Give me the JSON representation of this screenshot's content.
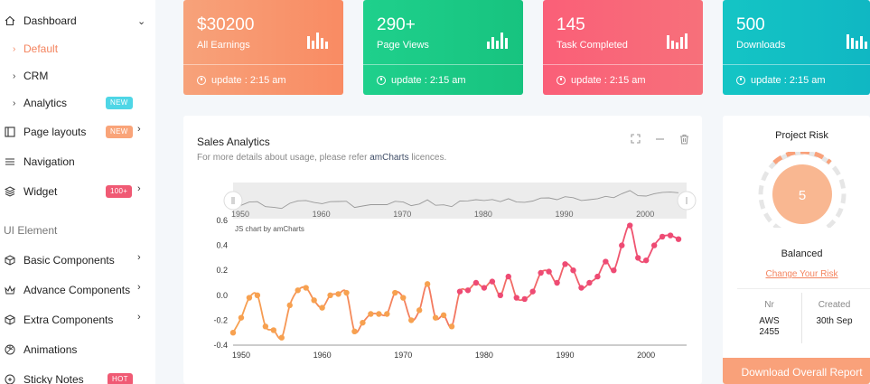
{
  "sidebar": {
    "items": [
      {
        "label": "Dashboard"
      },
      {
        "label": "Default"
      },
      {
        "label": "CRM"
      },
      {
        "label": "Analytics",
        "badge": "NEW"
      },
      {
        "label": "Page layouts",
        "badge": "NEW"
      },
      {
        "label": "Navigation"
      },
      {
        "label": "Widget",
        "badge": "100+"
      },
      {
        "label": "Basic Components"
      },
      {
        "label": "Advance Components"
      },
      {
        "label": "Extra Components"
      },
      {
        "label": "Animations"
      },
      {
        "label": "Sticky Notes",
        "badge": "HOT"
      }
    ],
    "section_title": "UI Element",
    "active_color": "#f4845f"
  },
  "stats": [
    {
      "value": "$30200",
      "label": "All Earnings",
      "update": "update : 2:15 am",
      "color_from": "#f7a27a",
      "color_to": "#f98b63"
    },
    {
      "value": "290+",
      "label": "Page Views",
      "update": "update : 2:15 am",
      "color_from": "#1fd08c",
      "color_to": "#17c37f"
    },
    {
      "value": "145",
      "label": "Task Completed",
      "update": "update : 2:15 am",
      "color_from": "#fa5f78",
      "color_to": "#f7707a"
    },
    {
      "value": "500",
      "label": "Downloads",
      "update": "update : 2:15 am",
      "color_from": "#14c5c5",
      "color_to": "#10b7c3"
    }
  ],
  "sales": {
    "title": "Sales Analytics",
    "desc_prefix": "For more details about usage, please refer ",
    "desc_link": "amCharts",
    "desc_suffix": " licences.",
    "watermark": "JS chart by amCharts"
  },
  "risk": {
    "title": "Project Risk",
    "score": "5",
    "status": "Balanced",
    "link": "Change Your Risk",
    "nr_label": "Nr",
    "nr_value_1": "AWS",
    "nr_value_2": "2455",
    "created_label": "Created",
    "created_value": "30th Sep",
    "button": "Download Overall Report"
  },
  "chart_data": {
    "type": "line",
    "title": "",
    "xlabel": "",
    "ylabel": "",
    "x_ticks": [
      "1950",
      "1960",
      "1970",
      "1980",
      "1990",
      "2000"
    ],
    "y_ticks": [
      "0.6",
      "0.4",
      "0.2",
      "0.0",
      "-0.2",
      "-0.4"
    ],
    "ylim": [
      -0.4,
      0.6
    ],
    "xlim": [
      1949,
      2005
    ],
    "scrollbar_ticks": [
      "1950",
      "1960",
      "1970",
      "1980",
      "1990",
      "2000"
    ],
    "x": [
      1949,
      1950,
      1951,
      1952,
      1953,
      1954,
      1955,
      1956,
      1957,
      1958,
      1959,
      1960,
      1961,
      1962,
      1963,
      1964,
      1965,
      1966,
      1967,
      1968,
      1969,
      1970,
      1971,
      1972,
      1973,
      1974,
      1975,
      1976,
      1977,
      1978,
      1979,
      1980,
      1981,
      1982,
      1983,
      1984,
      1985,
      1986,
      1987,
      1988,
      1989,
      1990,
      1991,
      1992,
      1993,
      1994,
      1995,
      1996,
      1997,
      1998,
      1999,
      2000,
      2001,
      2002,
      2003,
      2004
    ],
    "values": [
      -0.3,
      -0.18,
      -0.02,
      0.0,
      -0.25,
      -0.28,
      -0.34,
      -0.08,
      0.04,
      0.06,
      -0.04,
      -0.1,
      0.0,
      0.01,
      0.02,
      -0.29,
      -0.22,
      -0.15,
      -0.15,
      -0.15,
      0.02,
      -0.02,
      -0.2,
      -0.12,
      0.09,
      -0.18,
      -0.16,
      -0.25,
      0.03,
      0.04,
      0.1,
      0.06,
      0.11,
      0.0,
      0.15,
      -0.02,
      -0.03,
      0.03,
      0.18,
      0.19,
      0.1,
      0.25,
      0.2,
      0.06,
      0.1,
      0.15,
      0.27,
      0.2,
      0.4,
      0.56,
      0.3,
      0.28,
      0.4,
      0.47,
      0.48,
      0.45
    ]
  },
  "colors": {
    "line_start": "#f7a150",
    "line_end": "#ee4b74",
    "accent": "#f4845f"
  }
}
